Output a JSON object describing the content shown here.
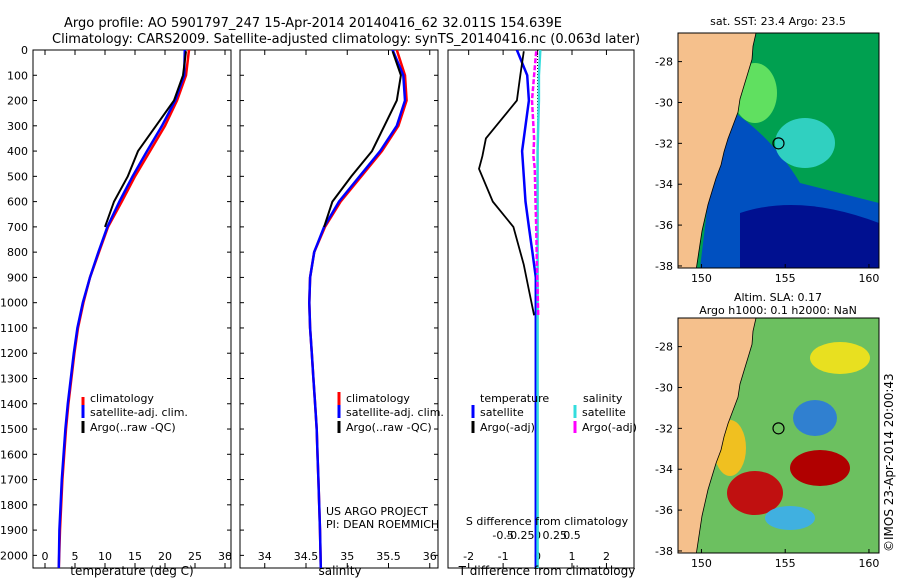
{
  "header": {
    "line1": "Argo profile: AO 5901797_247 15-Apr-2014 20140416_62 32.011S 154.639E",
    "line2": "Climatology: CARS2009. Satellite-adjusted climatology: synTS_20140416.nc (0.063d later)"
  },
  "colors": {
    "climatology": "#ff0000",
    "satellite": "#0000ff",
    "argo": "#000000",
    "salinity_sat": "#33dddd",
    "salinity_argo": "#ff00ff",
    "land": "#f5c08c"
  },
  "chart_data": [
    {
      "type": "line",
      "panel": "temperature",
      "xlabel": "temperature (deg C)",
      "xlim": [
        -2,
        31
      ],
      "xticks": [
        "0",
        "5",
        "10",
        "15",
        "20",
        "25",
        "30"
      ],
      "ylim": [
        2050,
        0
      ],
      "yticks": [
        "0",
        "100",
        "200",
        "300",
        "400",
        "500",
        "600",
        "700",
        "800",
        "900",
        "1000",
        "1100",
        "1200",
        "1300",
        "1400",
        "1500",
        "1600",
        "1700",
        "1800",
        "1900",
        "2000"
      ],
      "legend": [
        "climatology",
        "satellite-adj. clim.",
        "Argo(..raw -QC)"
      ],
      "series": [
        {
          "name": "climatology",
          "color": "red",
          "x": [
            24.0,
            23.5,
            22.0,
            20.0,
            17.5,
            15.0,
            12.8,
            10.5,
            9.0,
            7.5,
            6.4,
            5.5,
            4.9,
            4.4,
            3.9,
            3.5,
            3.2,
            2.9,
            2.7,
            2.5,
            2.3
          ],
          "y": [
            0,
            100,
            200,
            300,
            400,
            500,
            600,
            700,
            800,
            900,
            1000,
            1100,
            1200,
            1300,
            1400,
            1500,
            1600,
            1700,
            1800,
            1900,
            2050
          ]
        },
        {
          "name": "satellite-adj. clim.",
          "color": "blue",
          "x": [
            23.3,
            23.2,
            21.7,
            19.5,
            17.0,
            14.6,
            12.4,
            10.4,
            8.9,
            7.5,
            6.3,
            5.4,
            4.8,
            4.3,
            3.8,
            3.4,
            3.1,
            2.8,
            2.6,
            2.4,
            2.3
          ],
          "y": [
            0,
            100,
            200,
            300,
            400,
            500,
            600,
            700,
            800,
            900,
            1000,
            1100,
            1200,
            1300,
            1400,
            1500,
            1600,
            1700,
            1800,
            1900,
            2050
          ]
        },
        {
          "name": "Argo(..raw -QC)",
          "color": "black",
          "x": [
            23.5,
            23.0,
            21.5,
            18.5,
            15.5,
            13.8,
            11.5,
            10.0
          ],
          "y": [
            5,
            100,
            200,
            300,
            400,
            500,
            600,
            700
          ]
        }
      ]
    },
    {
      "type": "line",
      "panel": "salinity",
      "xlabel": "salinity",
      "xlim": [
        33.7,
        36.1
      ],
      "xticks": [
        "34",
        "34.5",
        "35",
        "35.5",
        "36"
      ],
      "ylim": [
        2050,
        0
      ],
      "legend": [
        "climatology",
        "satellite-adj. clim.",
        "Argo(..raw -QC)"
      ],
      "annotation": [
        "US ARGO PROJECT",
        "PI: DEAN ROEMMICH"
      ],
      "series": [
        {
          "name": "climatology",
          "color": "red",
          "x": [
            35.6,
            35.7,
            35.72,
            35.62,
            35.42,
            35.17,
            34.92,
            34.73,
            34.6,
            34.55,
            34.54,
            34.55,
            34.57,
            34.59,
            34.61,
            34.63,
            34.64,
            34.65,
            34.66,
            34.67,
            34.68
          ],
          "y": [
            0,
            100,
            200,
            300,
            400,
            500,
            600,
            700,
            800,
            900,
            1000,
            1100,
            1200,
            1300,
            1400,
            1500,
            1600,
            1700,
            1800,
            1900,
            2050
          ]
        },
        {
          "name": "satellite-adj. clim.",
          "color": "blue",
          "x": [
            35.55,
            35.68,
            35.7,
            35.6,
            35.4,
            35.15,
            34.9,
            34.72,
            34.6,
            34.55,
            34.54,
            34.55,
            34.57,
            34.59,
            34.61,
            34.63,
            34.64,
            34.65,
            34.66,
            34.67,
            34.68
          ],
          "y": [
            0,
            100,
            200,
            300,
            400,
            500,
            600,
            700,
            800,
            900,
            1000,
            1100,
            1200,
            1300,
            1400,
            1500,
            1600,
            1700,
            1800,
            1900,
            2050
          ]
        },
        {
          "name": "Argo(..raw -QC)",
          "color": "black",
          "x": [
            35.55,
            35.65,
            35.6,
            35.45,
            35.3,
            35.05,
            34.82,
            34.72
          ],
          "y": [
            5,
            100,
            200,
            300,
            400,
            500,
            600,
            700
          ]
        }
      ]
    },
    {
      "type": "line",
      "panel": "difference",
      "xlabel": "T difference from climatology",
      "xlim": [
        -2.6,
        2.8
      ],
      "xticks": [
        "-2",
        "-1",
        "0",
        "1",
        "2"
      ],
      "s_title": "S difference from climatology",
      "s_ticks": [
        "-0.5",
        "-0.25",
        "0",
        "0.25",
        "0.5"
      ],
      "ylim": [
        2050,
        0
      ],
      "legend_titles": [
        "temperature",
        "salinity"
      ],
      "legend": [
        "satellite",
        "Argo(-adj)",
        "satellite",
        "Argo(-adj)"
      ],
      "series": [
        {
          "name": "temperature satellite",
          "color": "blue",
          "x": [
            -0.6,
            -0.3,
            -0.25,
            -0.35,
            -0.45,
            -0.4,
            -0.35,
            -0.25,
            -0.15,
            -0.05,
            -0.05,
            -0.05,
            -0.05,
            -0.05,
            -0.05,
            -0.05,
            -0.05,
            -0.05,
            -0.05,
            -0.05,
            -0.05
          ],
          "y": [
            0,
            100,
            200,
            300,
            400,
            500,
            600,
            700,
            800,
            900,
            1000,
            1100,
            1200,
            1300,
            1400,
            1500,
            1600,
            1700,
            1800,
            1900,
            2050
          ]
        },
        {
          "name": "temperature Argo(-adj)",
          "color": "black",
          "x": [
            -0.4,
            -0.5,
            -0.6,
            -1.5,
            -1.6,
            -1.7,
            -1.3,
            -0.7,
            -0.4,
            -0.25,
            -0.1
          ],
          "y": [
            5,
            100,
            200,
            350,
            420,
            470,
            600,
            700,
            850,
            950,
            1050
          ]
        },
        {
          "name": "salinity satellite",
          "color": "cyan",
          "x": [
            0.04,
            0.02,
            0.02,
            0.01,
            0.0,
            0.0,
            0.0,
            0.0,
            0.0,
            0.0,
            0.0
          ],
          "y": [
            0,
            100,
            200,
            300,
            400,
            500,
            700,
            900,
            1200,
            1600,
            2050
          ]
        },
        {
          "name": "salinity Argo(-adj)",
          "color": "magenta",
          "x": [
            -0.02,
            -0.05,
            -0.08,
            -0.05,
            -0.06,
            -0.04,
            -0.03,
            -0.02,
            -0.01,
            0.0,
            0.01
          ],
          "y": [
            5,
            100,
            200,
            350,
            420,
            470,
            600,
            700,
            850,
            950,
            1050
          ]
        }
      ]
    },
    {
      "type": "heatmap",
      "panel": "sst-map",
      "title": "sat. SST: 23.4 Argo: 23.5",
      "xticks": [
        "150",
        "155",
        "160"
      ],
      "yticks": [
        "-28",
        "-30",
        "-32",
        "-34",
        "-36",
        "-38"
      ],
      "marker": {
        "lon": 154.6,
        "lat": -32.0
      }
    },
    {
      "type": "heatmap",
      "panel": "sla-map",
      "title_line1": "Altim. SLA: 0.17",
      "title_line2": "Argo h1000: 0.1 h2000: NaN",
      "xticks": [
        "150",
        "155",
        "160"
      ],
      "yticks": [
        "-28",
        "-30",
        "-32",
        "-34",
        "-36",
        "-38"
      ],
      "marker": {
        "lon": 154.6,
        "lat": -32.0
      }
    }
  ],
  "watermark": "©IMOS 23-Apr-2014 20:00:43"
}
